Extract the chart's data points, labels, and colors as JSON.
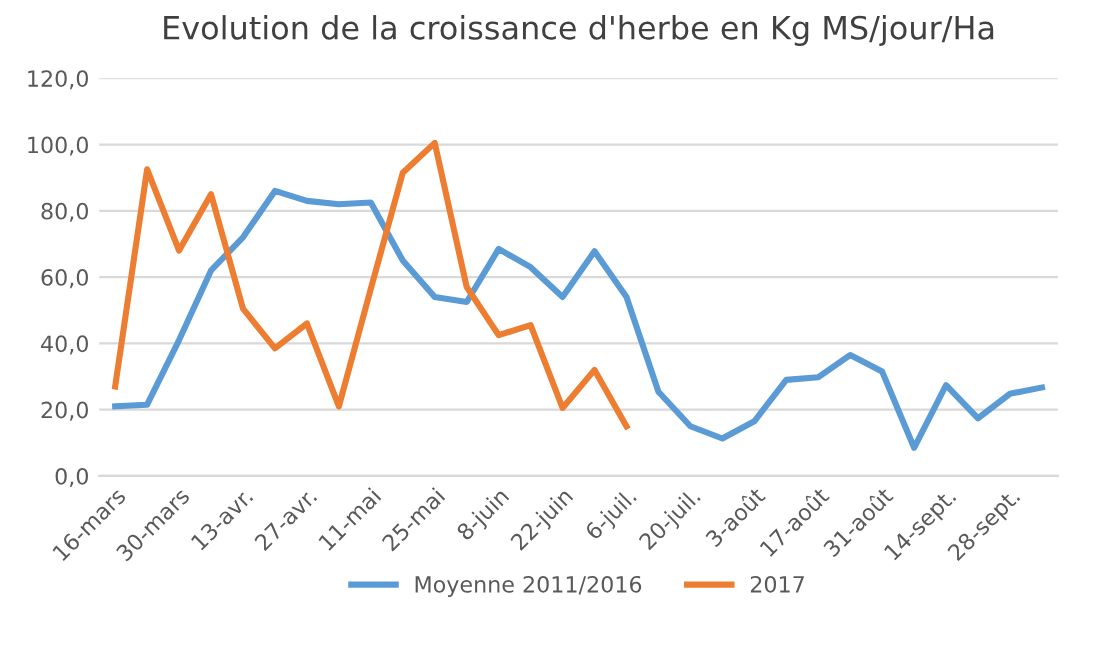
{
  "chart_data": {
    "type": "line",
    "title": "Evolution de la croissance d'herbe en Kg MS/jour/Ha",
    "categories": [
      "16-mars",
      null,
      "30-mars",
      null,
      "13-avr.",
      null,
      "27-avr.",
      null,
      "11-mai",
      null,
      "25-mai",
      null,
      "8-juin",
      null,
      "22-juin",
      null,
      "6-juil.",
      null,
      "20-juil.",
      null,
      "3-août",
      null,
      "17-août",
      null,
      "31-août",
      null,
      "14-sept.",
      null,
      "28-sept.",
      null
    ],
    "series": [
      {
        "name": "Moyenne 2011/2016",
        "color": "#5b9bd5",
        "values": [
          21,
          21.5,
          41,
          62,
          72,
          86,
          83,
          82,
          82.5,
          65,
          54,
          52.5,
          68.5,
          63,
          54,
          67.8,
          54,
          25.4,
          15,
          11.3,
          16.5,
          29,
          29.8,
          36.5,
          31.5,
          8.5,
          27.4,
          17.4,
          24.8,
          26.7
        ]
      },
      {
        "name": "2017",
        "color": "#ed7d31",
        "values": [
          27,
          92.5,
          68,
          85,
          50.5,
          38.5,
          46,
          21,
          56.5,
          91.5,
          100.5,
          57,
          42.5,
          45.5,
          20.5,
          32,
          15,
          null,
          null,
          null,
          null,
          null,
          null,
          null,
          null,
          null,
          null,
          null,
          null,
          null
        ]
      }
    ],
    "ylim": [
      0,
      120
    ],
    "yticks": [
      {
        "value": 0,
        "label": "0,0"
      },
      {
        "value": 20,
        "label": "20,0"
      },
      {
        "value": 40,
        "label": "40,0"
      },
      {
        "value": 60,
        "label": "60,0"
      },
      {
        "value": 80,
        "label": "80,0"
      },
      {
        "value": 100,
        "label": "100,0"
      },
      {
        "value": 120,
        "label": "120,0"
      }
    ],
    "grid": "y",
    "legend": "bottom",
    "marker": "none",
    "line_style": "solid"
  }
}
